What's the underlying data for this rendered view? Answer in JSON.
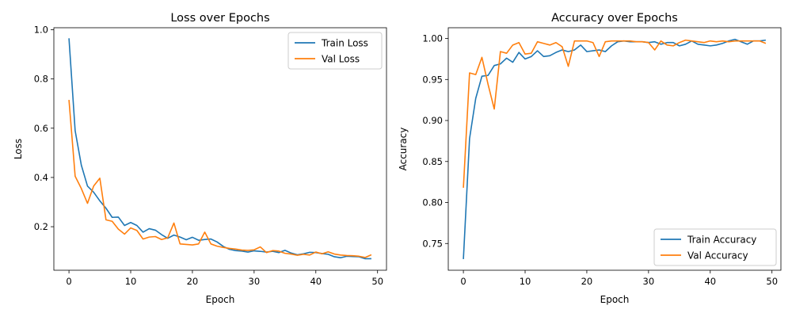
{
  "chart_data": [
    {
      "type": "line",
      "title": "Loss over Epochs",
      "xlabel": "Epoch",
      "ylabel": "Loss",
      "xlim": [
        -2.45,
        51.45
      ],
      "ylim": [
        0.0232,
        1.008
      ],
      "xticks": [
        0,
        10,
        20,
        30,
        40,
        50
      ],
      "yticks": [
        0.2,
        0.4,
        0.6,
        0.8,
        1.0
      ],
      "ytick_labels": [
        "0.2",
        "0.4",
        "0.6",
        "0.8",
        "1.0"
      ],
      "legend_position": "upper right",
      "grid": false,
      "series": [
        {
          "name": "Train Loss",
          "color": "#1f77b4",
          "x": [
            0,
            1,
            2,
            3,
            4,
            5,
            6,
            7,
            8,
            9,
            10,
            11,
            12,
            13,
            14,
            15,
            16,
            17,
            18,
            19,
            20,
            21,
            22,
            23,
            24,
            25,
            26,
            27,
            28,
            29,
            30,
            31,
            32,
            33,
            34,
            35,
            36,
            37,
            38,
            39,
            40,
            41,
            42,
            43,
            44,
            45,
            46,
            47,
            48,
            49
          ],
          "y": [
            0.965,
            0.59,
            0.45,
            0.365,
            0.34,
            0.305,
            0.275,
            0.238,
            0.239,
            0.205,
            0.217,
            0.205,
            0.178,
            0.192,
            0.186,
            0.168,
            0.153,
            0.166,
            0.158,
            0.147,
            0.157,
            0.145,
            0.148,
            0.15,
            0.138,
            0.12,
            0.108,
            0.103,
            0.101,
            0.097,
            0.102,
            0.1,
            0.097,
            0.1,
            0.095,
            0.104,
            0.093,
            0.086,
            0.09,
            0.096,
            0.095,
            0.091,
            0.088,
            0.078,
            0.074,
            0.08,
            0.079,
            0.078,
            0.07,
            0.07
          ]
        },
        {
          "name": "Val Loss",
          "color": "#ff7f0e",
          "x": [
            0,
            1,
            2,
            3,
            4,
            5,
            6,
            7,
            8,
            9,
            10,
            11,
            12,
            13,
            14,
            15,
            16,
            17,
            18,
            19,
            20,
            21,
            22,
            23,
            24,
            25,
            26,
            27,
            28,
            29,
            30,
            31,
            32,
            33,
            34,
            35,
            36,
            37,
            38,
            39,
            40,
            41,
            42,
            43,
            44,
            45,
            46,
            47,
            48,
            49
          ],
          "y": [
            0.715,
            0.405,
            0.355,
            0.295,
            0.365,
            0.397,
            0.228,
            0.222,
            0.19,
            0.17,
            0.195,
            0.185,
            0.15,
            0.158,
            0.16,
            0.148,
            0.155,
            0.215,
            0.13,
            0.128,
            0.126,
            0.13,
            0.178,
            0.13,
            0.121,
            0.116,
            0.112,
            0.109,
            0.105,
            0.104,
            0.106,
            0.118,
            0.095,
            0.103,
            0.101,
            0.092,
            0.089,
            0.084,
            0.088,
            0.085,
            0.097,
            0.09,
            0.098,
            0.089,
            0.085,
            0.083,
            0.082,
            0.08,
            0.075,
            0.086
          ]
        }
      ]
    },
    {
      "type": "line",
      "title": "Accuracy over Epochs",
      "xlabel": "Epoch",
      "ylabel": "Accuracy",
      "xlim": [
        -2.45,
        51.45
      ],
      "ylim": [
        0.7174,
        1.0131
      ],
      "xticks": [
        0,
        10,
        20,
        30,
        40,
        50
      ],
      "yticks": [
        0.75,
        0.8,
        0.85,
        0.9,
        0.95,
        1.0
      ],
      "ytick_labels": [
        "0.75",
        "0.80",
        "0.85",
        "0.90",
        "0.95",
        "1.00"
      ],
      "legend_position": "lower right",
      "grid": false,
      "series": [
        {
          "name": "Train Accuracy",
          "color": "#1f77b4",
          "x": [
            0,
            1,
            2,
            3,
            4,
            5,
            6,
            7,
            8,
            9,
            10,
            11,
            12,
            13,
            14,
            15,
            16,
            17,
            18,
            19,
            20,
            21,
            22,
            23,
            24,
            25,
            26,
            27,
            28,
            29,
            30,
            31,
            32,
            33,
            34,
            35,
            36,
            37,
            38,
            39,
            40,
            41,
            42,
            43,
            44,
            45,
            46,
            47,
            48,
            49
          ],
          "y": [
            0.731,
            0.878,
            0.927,
            0.954,
            0.955,
            0.967,
            0.969,
            0.976,
            0.971,
            0.983,
            0.975,
            0.978,
            0.985,
            0.978,
            0.979,
            0.983,
            0.986,
            0.984,
            0.986,
            0.992,
            0.984,
            0.985,
            0.986,
            0.984,
            0.991,
            0.996,
            0.997,
            0.996,
            0.996,
            0.996,
            0.995,
            0.996,
            0.993,
            0.995,
            0.995,
            0.991,
            0.993,
            0.997,
            0.993,
            0.992,
            0.991,
            0.992,
            0.994,
            0.997,
            0.999,
            0.996,
            0.993,
            0.997,
            0.997,
            0.998
          ]
        },
        {
          "name": "Val Accuracy",
          "color": "#ff7f0e",
          "x": [
            0,
            1,
            2,
            3,
            4,
            5,
            6,
            7,
            8,
            9,
            10,
            11,
            12,
            13,
            14,
            15,
            16,
            17,
            18,
            19,
            20,
            21,
            22,
            23,
            24,
            25,
            26,
            27,
            28,
            29,
            30,
            31,
            32,
            33,
            34,
            35,
            36,
            37,
            38,
            39,
            40,
            41,
            42,
            43,
            44,
            45,
            46,
            47,
            48,
            49
          ],
          "y": [
            0.818,
            0.958,
            0.956,
            0.977,
            0.944,
            0.914,
            0.984,
            0.982,
            0.992,
            0.995,
            0.981,
            0.982,
            0.996,
            0.994,
            0.992,
            0.995,
            0.99,
            0.966,
            0.997,
            0.997,
            0.997,
            0.995,
            0.978,
            0.996,
            0.997,
            0.997,
            0.997,
            0.997,
            0.996,
            0.996,
            0.995,
            0.986,
            0.997,
            0.992,
            0.991,
            0.995,
            0.998,
            0.997,
            0.996,
            0.995,
            0.997,
            0.996,
            0.997,
            0.996,
            0.997,
            0.997,
            0.997,
            0.997,
            0.997,
            0.994
          ]
        }
      ]
    }
  ]
}
